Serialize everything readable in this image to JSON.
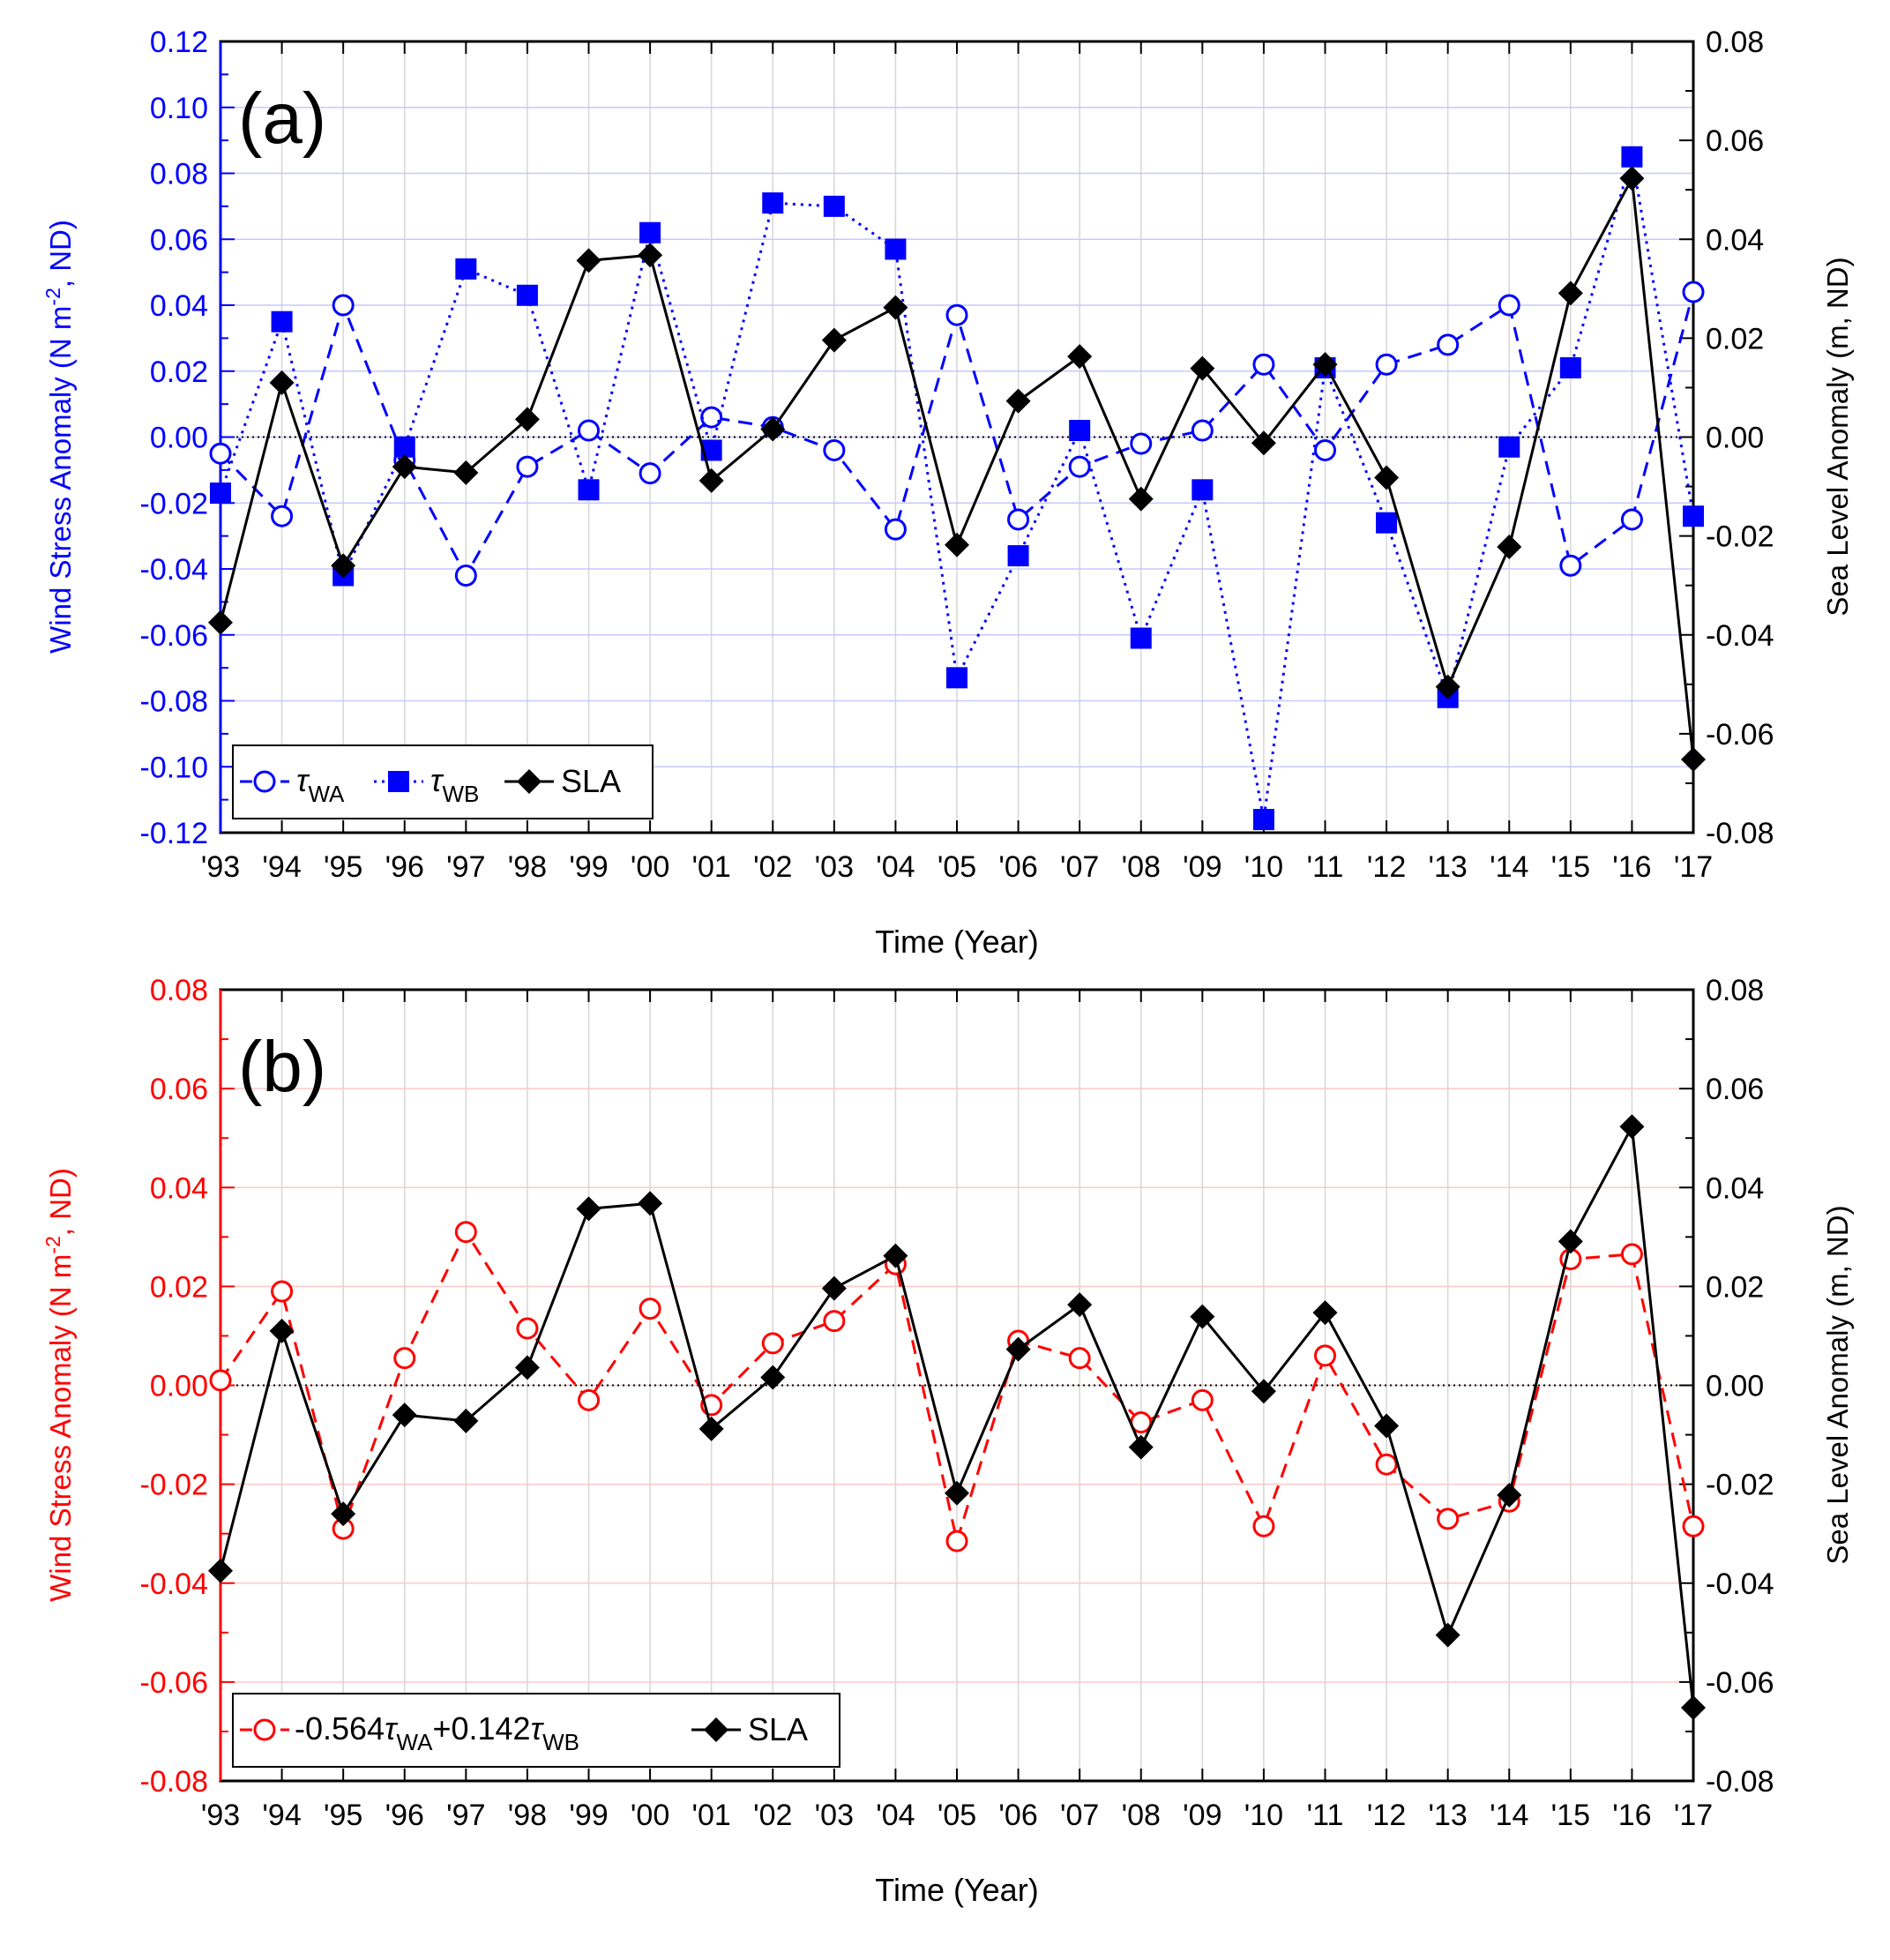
{
  "figure": {
    "xlabel": "Time (Year)"
  },
  "legend_labels": {
    "a_twa_sym": "τ",
    "a_twa_sub": "WA",
    "a_twb_sym": "τ",
    "a_twb_sub": "WB",
    "a_sla": "SLA",
    "b_c1": "-0.564",
    "b_sym1": "τ",
    "b_sub1": "WA",
    "b_c2": "+0.142",
    "b_sym2": "τ",
    "b_sub2": "WB",
    "b_sla": "SLA"
  },
  "chart_data": [
    {
      "id": "a",
      "type": "line",
      "panel_label": "(a)",
      "categories": [
        "'93",
        "'94",
        "'95",
        "'96",
        "'97",
        "'98",
        "'99",
        "'00",
        "'01",
        "'02",
        "'03",
        "'04",
        "'05",
        "'06",
        "'07",
        "'08",
        "'09",
        "'10",
        "'11",
        "'12",
        "'13",
        "'14",
        "'15",
        "'16",
        "'17"
      ],
      "xlabel": "Time (Year)",
      "ylabel_left": "Wind Stress Anomaly (N m⁻², ND)",
      "ylabel_left_parts": [
        "Wind Stress Anomaly (N m",
        "-2",
        ", ND)"
      ],
      "ylabel_right": "Sea Level Anomaly (m, ND)",
      "ylim_left": [
        -0.12,
        0.12
      ],
      "yticks_left": [
        "0.12",
        "0.10",
        "0.08",
        "0.06",
        "0.04",
        "0.02",
        "0.00",
        "-0.02",
        "-0.04",
        "-0.06",
        "-0.08",
        "-0.10",
        "-0.12"
      ],
      "ylim_right": [
        -0.08,
        0.08
      ],
      "yticks_right": [
        "0.08",
        "0.06",
        "0.04",
        "0.02",
        "0.00",
        "-0.02",
        "-0.04",
        "-0.06",
        "-0.08"
      ],
      "left_color": "#0000ff",
      "grid": true,
      "legend_position": "bottom-left",
      "series": [
        {
          "name": "τWA",
          "axis": "left",
          "color": "#0000ff",
          "style": "dashed",
          "marker": "open-circle",
          "values": [
            -0.005,
            -0.024,
            0.04,
            -0.007,
            -0.042,
            -0.009,
            0.002,
            -0.011,
            0.006,
            0.003,
            -0.004,
            -0.028,
            0.037,
            -0.025,
            -0.009,
            -0.002,
            0.002,
            0.022,
            -0.004,
            0.022,
            0.028,
            0.04,
            -0.039,
            -0.025,
            0.044
          ]
        },
        {
          "name": "τWB",
          "axis": "left",
          "color": "#0000ff",
          "style": "dotted",
          "marker": "filled-square",
          "values": [
            -0.017,
            0.035,
            -0.042,
            -0.003,
            0.051,
            0.043,
            -0.016,
            0.062,
            -0.004,
            0.071,
            0.07,
            0.057,
            -0.073,
            -0.036,
            0.002,
            -0.061,
            -0.016,
            -0.116,
            0.021,
            -0.026,
            -0.079,
            -0.003,
            0.021,
            0.085,
            -0.024
          ]
        },
        {
          "name": "SLA",
          "axis": "right",
          "color": "#000000",
          "style": "solid",
          "marker": "filled-diamond",
          "values": [
            -0.0375,
            0.011,
            -0.026,
            -0.006,
            -0.0072,
            0.0036,
            0.0357,
            0.0368,
            -0.0088,
            0.0016,
            0.0196,
            0.0262,
            -0.0218,
            0.0073,
            0.0163,
            -0.0125,
            0.0139,
            -0.0012,
            0.0147,
            -0.0082,
            -0.0505,
            -0.0222,
            0.0291,
            0.0523,
            -0.0652
          ]
        }
      ]
    },
    {
      "id": "b",
      "type": "line",
      "panel_label": "(b)",
      "categories": [
        "'93",
        "'94",
        "'95",
        "'96",
        "'97",
        "'98",
        "'99",
        "'00",
        "'01",
        "'02",
        "'03",
        "'04",
        "'05",
        "'06",
        "'07",
        "'08",
        "'09",
        "'10",
        "'11",
        "'12",
        "'13",
        "'14",
        "'15",
        "'16",
        "'17"
      ],
      "xlabel": "Time (Year)",
      "ylabel_left": "Wind Stress Anomaly (N m⁻², ND)",
      "ylabel_left_parts": [
        "Wind Stress Anomaly (N m",
        "-2",
        ", ND)"
      ],
      "ylabel_right": "Sea Level Anomaly (m, ND)",
      "ylim_left": [
        -0.08,
        0.08
      ],
      "yticks_left": [
        "0.08",
        "0.06",
        "0.04",
        "0.02",
        "0.00",
        "-0.02",
        "-0.04",
        "-0.06",
        "-0.08"
      ],
      "ylim_right": [
        -0.08,
        0.08
      ],
      "yticks_right": [
        "0.08",
        "0.06",
        "0.04",
        "0.02",
        "0.00",
        "-0.02",
        "-0.04",
        "-0.06",
        "-0.08"
      ],
      "left_color": "#ff0000",
      "grid": true,
      "legend_position": "bottom-left",
      "series": [
        {
          "name": "-0.564τWA+0.142τWB",
          "axis": "left",
          "color": "#ff0000",
          "style": "dashed",
          "marker": "open-circle",
          "values": [
            0.001,
            0.019,
            -0.029,
            0.0055,
            0.031,
            0.0115,
            -0.003,
            0.0155,
            -0.004,
            0.0085,
            0.013,
            0.0245,
            -0.0315,
            0.009,
            0.0055,
            -0.0075,
            -0.003,
            -0.0285,
            0.006,
            -0.016,
            -0.027,
            -0.0235,
            0.0255,
            0.0265,
            -0.0285
          ]
        },
        {
          "name": "SLA",
          "axis": "right",
          "color": "#000000",
          "style": "solid",
          "marker": "filled-diamond",
          "values": [
            -0.0375,
            0.011,
            -0.026,
            -0.006,
            -0.0072,
            0.0036,
            0.0357,
            0.0368,
            -0.0088,
            0.0016,
            0.0196,
            0.0262,
            -0.0218,
            0.0073,
            0.0163,
            -0.0125,
            0.0139,
            -0.0012,
            0.0147,
            -0.0082,
            -0.0505,
            -0.0222,
            0.0291,
            0.0523,
            -0.0652
          ]
        }
      ]
    }
  ]
}
